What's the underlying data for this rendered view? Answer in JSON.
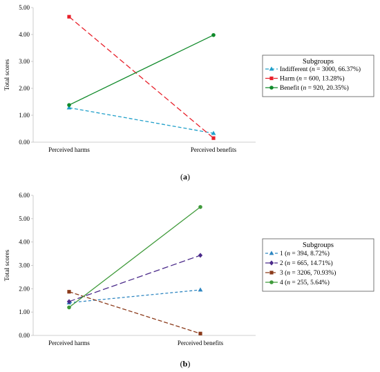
{
  "chart_data": [
    {
      "type": "line",
      "panel_label": "(a)",
      "categories": [
        "Perceived harms",
        "Perceived benefits"
      ],
      "ylabel": "Total scores",
      "ylim": [
        0,
        5
      ],
      "yticks": [
        "0.00",
        "1.00",
        "2.00",
        "3.00",
        "4.00",
        "5.00"
      ],
      "grid": false,
      "legend": {
        "title": "Subgroups",
        "placement": "right"
      },
      "series": [
        {
          "name": "Indifferent (n = 3000, 66.37%)",
          "pre": "Indifferent (",
          "n": "3000, 66.37%)",
          "color": "#1f9fc9",
          "dash": "5,3",
          "marker": "triangle",
          "values": [
            1.28,
            0.33
          ]
        },
        {
          "name": "Harm (n = 600, 13.28%)",
          "pre": "Harm (",
          "n": "600, 13.28%)",
          "color": "#e8202a",
          "dash": "8,4",
          "marker": "square",
          "values": [
            4.66,
            0.15
          ]
        },
        {
          "name": "Benefit (n = 920, 20.35%)",
          "pre": "Benefit (",
          "n": "920, 20.35%)",
          "color": "#108a2a",
          "dash": "",
          "marker": "circle",
          "values": [
            1.38,
            3.98
          ]
        }
      ]
    },
    {
      "type": "line",
      "panel_label": "(b)",
      "categories": [
        "Perceived harms",
        "Perceived benefits"
      ],
      "ylabel": "Total scores",
      "ylim": [
        0,
        6
      ],
      "yticks": [
        "0.00",
        "1.00",
        "2.00",
        "3.00",
        "4.00",
        "5.00",
        "6.00"
      ],
      "grid": false,
      "legend": {
        "title": "Subgroups",
        "placement": "right"
      },
      "series": [
        {
          "name": "1 (n = 394, 8.72%)",
          "pre": "1 (",
          "n": "394, 8.72%)",
          "color": "#2e86c1",
          "dash": "4,3",
          "marker": "triangle",
          "values": [
            1.4,
            1.95
          ]
        },
        {
          "name": "2 (n = 665, 14.71%)",
          "pre": "2 (",
          "n": "665, 14.71%)",
          "color": "#4b2a8a",
          "dash": "9,4",
          "marker": "diamond",
          "values": [
            1.45,
            3.43
          ]
        },
        {
          "name": "3 (n = 3206, 70.93%)",
          "pre": "3 (",
          "n": "3206, 70.93%)",
          "color": "#8b3a1a",
          "dash": "6,3",
          "marker": "square",
          "values": [
            1.87,
            0.08
          ]
        },
        {
          "name": "4 (n = 255, 5.64%)",
          "pre": "4 (",
          "n": "255, 5.64%)",
          "color": "#3f9a3a",
          "dash": "",
          "marker": "circle",
          "values": [
            1.2,
            5.5
          ]
        }
      ]
    }
  ]
}
